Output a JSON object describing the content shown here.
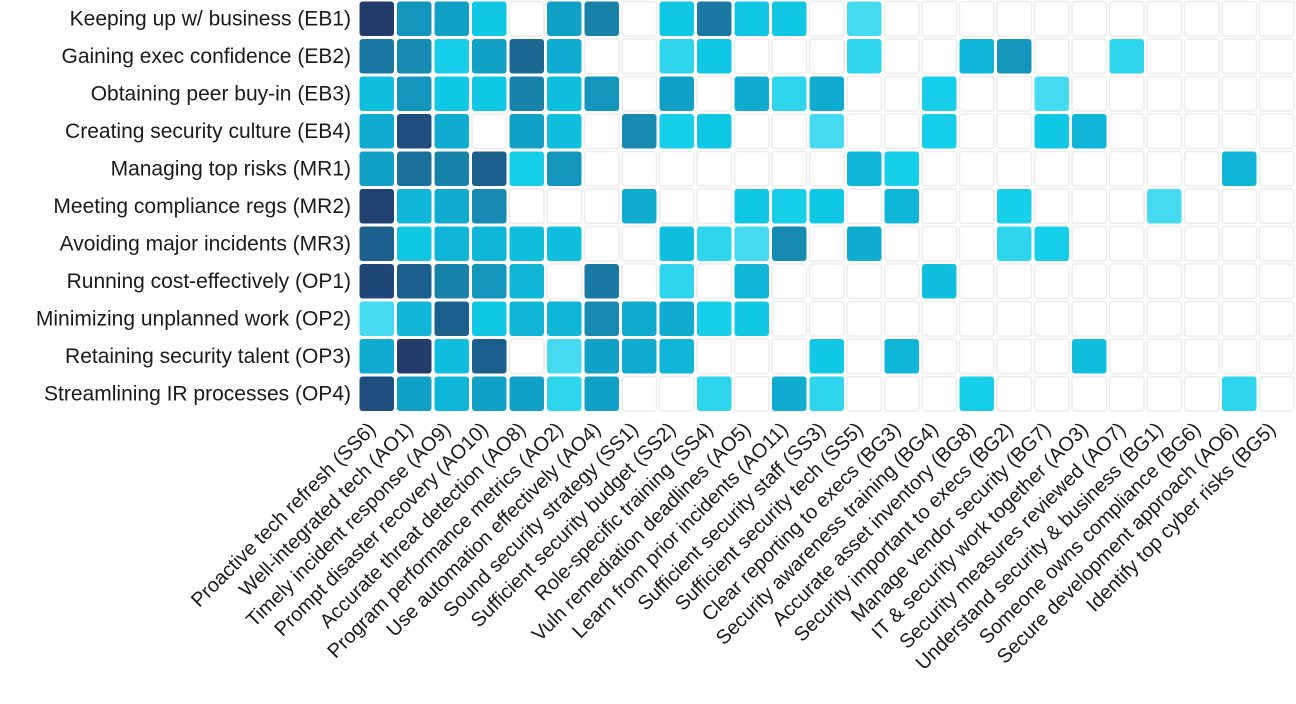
{
  "chart_data": {
    "type": "heatmap",
    "rows": [
      "Keeping up w/ business (EB1)",
      "Gaining exec confidence (EB2)",
      "Obtaining peer buy-in (EB3)",
      "Creating security culture (EB4)",
      "Managing top risks (MR1)",
      "Meeting compliance regs (MR2)",
      "Avoiding major incidents (MR3)",
      "Running cost-effectively (OP1)",
      "Minimizing unplanned work (OP2)",
      "Retaining security talent (OP3)",
      "Streamlining IR processes (OP4)"
    ],
    "columns": [
      "Proactive tech refresh (SS6)",
      "Well-integrated tech (AO1)",
      "Timely incident response (AO9)",
      "Prompt disaster recovery (AO10)",
      "Accurate threat detection (AO8)",
      "Program performance metrics (AO2)",
      "Use automation effectively (AO4)",
      "Sound security strategy (SS1)",
      "Sufficient security budget (SS2)",
      "Role-specific training (SS4)",
      "Vuln remediation deadlines (AO5)",
      "Learn from prior incidents (AO11)",
      "Sufficient security staff (SS3)",
      "Sufficient security tech (SS5)",
      "Clear reporting to execs (BG3)",
      "Security awareness training (BG4)",
      "Accurate asset inventory (BG8)",
      "Security important to execs (BG2)",
      "Manage vendor security (BG7)",
      "IT & security work together (AO3)",
      "Security measures reviewed (AO7)",
      "Understand security & business (BG1)",
      "Someone owns compliance (BG6)",
      "Secure development approach (AO6)",
      "Identify top cyber risks (BG5)"
    ],
    "values": [
      [
        1.0,
        0.45,
        0.4,
        0.2,
        null,
        0.4,
        0.55,
        null,
        0.2,
        0.6,
        0.2,
        0.2,
        null,
        0.05,
        null,
        null,
        null,
        null,
        null,
        null,
        null,
        null,
        null,
        null,
        null
      ],
      [
        0.6,
        0.5,
        0.15,
        0.4,
        0.7,
        0.35,
        null,
        null,
        0.1,
        0.2,
        null,
        null,
        null,
        0.1,
        null,
        null,
        0.3,
        0.45,
        null,
        null,
        0.1,
        null,
        null,
        null,
        null
      ],
      [
        0.25,
        0.45,
        0.2,
        0.2,
        0.55,
        0.25,
        0.45,
        null,
        0.4,
        null,
        0.35,
        0.1,
        0.35,
        null,
        null,
        0.15,
        null,
        null,
        0.05,
        null,
        null,
        null,
        null,
        null,
        null
      ],
      [
        0.35,
        0.85,
        0.35,
        null,
        0.4,
        0.25,
        null,
        0.5,
        0.15,
        0.2,
        null,
        null,
        0.05,
        null,
        null,
        0.15,
        null,
        null,
        0.2,
        0.3,
        null,
        null,
        null,
        null,
        null
      ],
      [
        0.4,
        0.65,
        0.55,
        0.75,
        0.15,
        0.45,
        null,
        null,
        null,
        null,
        null,
        null,
        null,
        0.3,
        0.15,
        null,
        null,
        null,
        null,
        null,
        null,
        null,
        null,
        0.3,
        null
      ],
      [
        0.95,
        0.3,
        0.35,
        0.5,
        null,
        null,
        null,
        0.35,
        null,
        null,
        0.2,
        0.15,
        0.2,
        null,
        0.3,
        null,
        null,
        0.15,
        null,
        null,
        null,
        0.05,
        null,
        null,
        null
      ],
      [
        0.75,
        0.2,
        0.3,
        0.3,
        0.25,
        0.25,
        null,
        null,
        0.25,
        0.1,
        0.05,
        0.5,
        null,
        0.35,
        null,
        null,
        null,
        0.1,
        0.15,
        null,
        null,
        null,
        null,
        null,
        null
      ],
      [
        0.9,
        0.75,
        0.55,
        0.45,
        0.3,
        null,
        0.6,
        null,
        0.1,
        null,
        0.3,
        null,
        null,
        null,
        null,
        0.25,
        null,
        null,
        null,
        null,
        null,
        null,
        null,
        null,
        null
      ],
      [
        0.05,
        0.3,
        0.75,
        0.2,
        0.3,
        0.3,
        0.5,
        0.35,
        0.35,
        0.15,
        0.2,
        null,
        null,
        null,
        null,
        null,
        null,
        null,
        null,
        null,
        null,
        null,
        null,
        null,
        null
      ],
      [
        0.35,
        1.05,
        0.25,
        0.75,
        null,
        0.05,
        0.4,
        0.35,
        0.3,
        null,
        null,
        null,
        0.2,
        null,
        0.3,
        null,
        null,
        null,
        null,
        0.25,
        null,
        null,
        null,
        null,
        null
      ],
      [
        0.85,
        0.4,
        0.3,
        0.4,
        0.4,
        0.1,
        0.4,
        null,
        null,
        0.1,
        null,
        0.35,
        0.1,
        null,
        null,
        null,
        0.15,
        null,
        null,
        null,
        null,
        null,
        null,
        0.1,
        null
      ]
    ],
    "color_scale": [
      "#5ce0f4",
      "#10cde8",
      "#0fb0d4",
      "#168ab0",
      "#1b6e98",
      "#1d4f80",
      "#233c6a"
    ],
    "empty_cell_color": "#ffffff",
    "grid_line_color": "#ececec",
    "title": "",
    "xlabel": "",
    "ylabel": "",
    "legend": "none"
  }
}
